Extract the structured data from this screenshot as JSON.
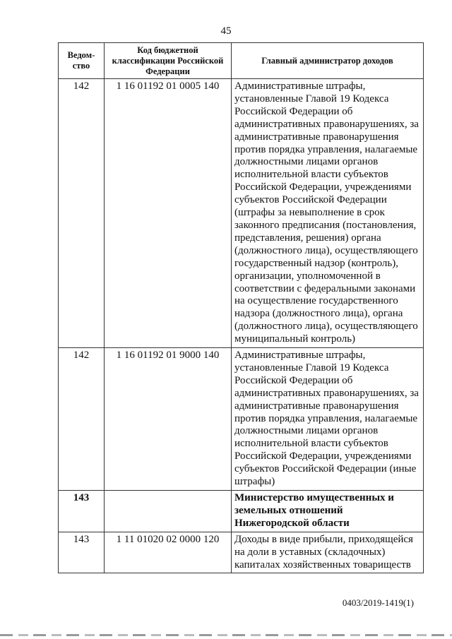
{
  "page_number": "45",
  "table": {
    "headers": [
      "Ведом-ство",
      "Код бюджетной классификации Российской Федерации",
      "Главный администратор доходов"
    ],
    "rows": [
      {
        "dept": "142",
        "code": "1 16 01192 01 0005 140",
        "text": "Административные штрафы, установленные Главой 19 Кодекса Российской Федерации об административных правонарушениях, за административные правонарушения против порядка управления, налагаемые должностными лицами органов исполнительной власти субъектов Российской Федерации, учреждениями субъектов Российской Федерации (штрафы за невыполнение в срок законного предписания (постановления, представления, решения) органа (должностного лица), осуществляющего государственный надзор (контроль), организации, уполномоченной в соответствии с федеральными законами на осуществление государственного надзора (должностного лица), органа (должностного лица), осуществляющего муниципальный контроль)",
        "bold": false
      },
      {
        "dept": "142",
        "code": "1 16 01192 01 9000 140",
        "text": "Административные штрафы, установленные Главой 19 Кодекса Российской Федерации об административных правонарушениях, за административные правонарушения против порядка управления, налагаемые должностными лицами органов исполнительной власти субъектов Российской Федерации, учреждениями субъектов Российской Федерации (иные штрафы)",
        "bold": false
      },
      {
        "dept": "143",
        "code": "",
        "text": "Министерство имущественных и земельных отношений Нижегородской области",
        "bold": true
      },
      {
        "dept": "143",
        "code": "1 11 01020 02 0000 120",
        "text": "Доходы в виде прибыли, приходящейся на доли в уставных (складочных) капиталах хозяйственных товариществ",
        "bold": false
      }
    ]
  },
  "footer_code": "0403/2019-1419(1)"
}
